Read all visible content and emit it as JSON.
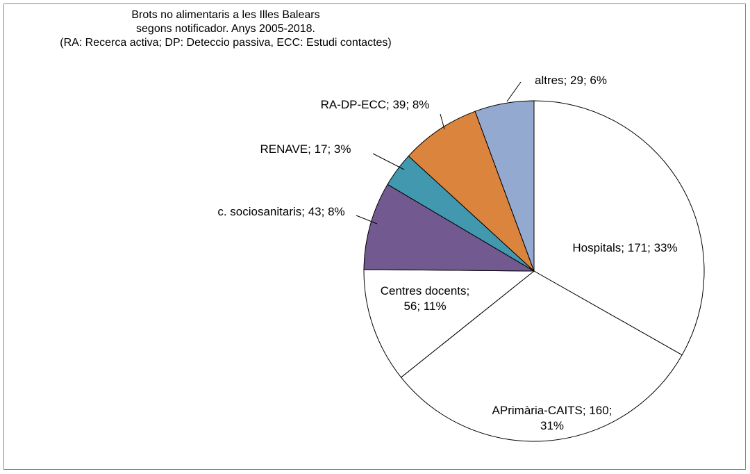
{
  "chart_data": {
    "type": "pie",
    "title": [
      "Brots no alimentaris a les Illes Balears",
      "segons notificador. Anys 2005-2018.",
      "(RA: Recerca activa; DP: Deteccio passiva, ECC: Estudi contactes)"
    ],
    "values": [
      171,
      160,
      56,
      43,
      17,
      39,
      29
    ],
    "value_labels": [
      "Hospitals; 171; 33%",
      "APrimària-CAITS; 160; 31%",
      "Centres docents; 56; 11%",
      "c. sociosanitaris; 43; 8%",
      "RENAVE; 17; 3%",
      "RA-DP-ECC; 39; 8%",
      "altres; 29; 6%"
    ],
    "colors": [
      "#ffffff",
      "#ffffff",
      "#ffffff",
      "#725990",
      "#4198af",
      "#db843d",
      "#93a9cf"
    ]
  }
}
